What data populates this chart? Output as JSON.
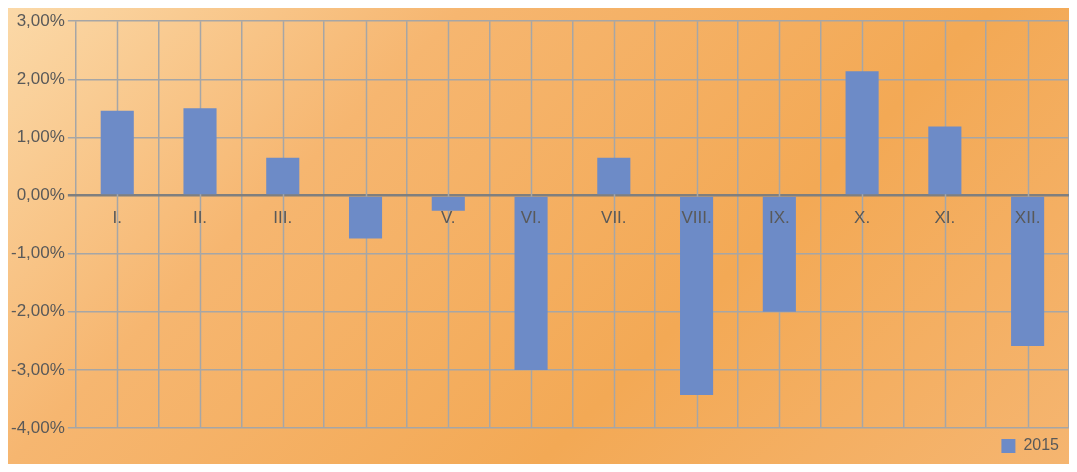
{
  "chart_data": {
    "type": "bar",
    "categories": [
      "I.",
      "II.",
      "III.",
      null,
      "V.",
      "VI.",
      "VII.",
      "VIII.",
      "IX.",
      "X.",
      "XI.",
      "XII."
    ],
    "series": [
      {
        "name": "2015",
        "color": "#6d8bc7",
        "values": [
          1.46,
          1.5,
          0.65,
          -0.74,
          -0.26,
          -3.0,
          0.65,
          -3.43,
          -2.0,
          2.14,
          1.19,
          -2.59
        ]
      }
    ],
    "ylim": [
      -4,
      3
    ],
    "yticks": [
      {
        "value": -4,
        "label": "-4,00%"
      },
      {
        "value": -3,
        "label": "-3,00%"
      },
      {
        "value": -2,
        "label": "-2,00%"
      },
      {
        "value": -1,
        "label": "-1,00%"
      },
      {
        "value": 0,
        "label": "0,00%"
      },
      {
        "value": 1,
        "label": "1,00%"
      },
      {
        "value": 2,
        "label": "2,00%"
      },
      {
        "value": 3,
        "label": "3,00%"
      }
    ],
    "grid": true,
    "legend": "bottom right"
  }
}
